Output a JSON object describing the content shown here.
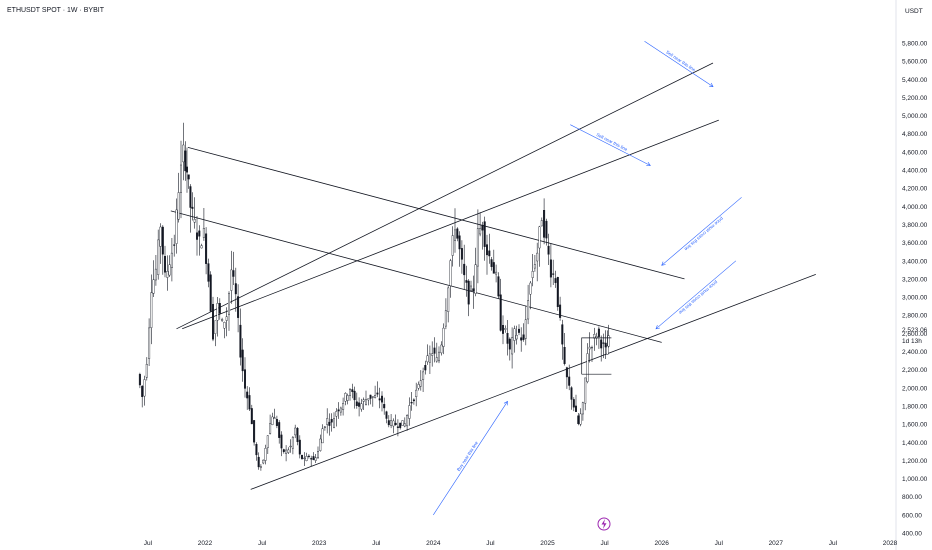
{
  "header": {
    "symbol_title": "ETHUSDT SPOT · 1W · BYBIT"
  },
  "chart_data": {
    "type": "candlestick",
    "title": "ETHUSDT SPOT · 1W · BYBIT",
    "currency_label": "USDT",
    "ylim": [
      400,
      6000
    ],
    "y_ticks": [
      "400.00",
      "600.00",
      "800.00",
      "1,000.00",
      "1,200.00",
      "1,400.00",
      "1,600.00",
      "1,800.00",
      "2,000.00",
      "2,200.00",
      "2,400.00",
      "2,600.00",
      "2,800.00",
      "3,000.00",
      "3,200.00",
      "3,400.00",
      "3,600.00",
      "3,800.00",
      "4,000.00",
      "4,200.00",
      "4,400.00",
      "4,600.00",
      "4,800.00",
      "5,000.00",
      "5,200.00",
      "5,400.00",
      "5,600.00",
      "5,800.00"
    ],
    "x_ticks": [
      "Jul",
      "2022",
      "Jul",
      "2023",
      "Jul",
      "2024",
      "Jul",
      "2025",
      "Jul",
      "2026",
      "Jul",
      "2027",
      "Jul",
      "2028"
    ],
    "last_price": "2,523.06",
    "countdown": "1d 13h",
    "price_path": [
      [
        2021.42,
        2150
      ],
      [
        2021.46,
        1900
      ],
      [
        2021.5,
        2300
      ],
      [
        2021.54,
        3100
      ],
      [
        2021.58,
        3300
      ],
      [
        2021.62,
        3800
      ],
      [
        2021.66,
        3200
      ],
      [
        2021.7,
        3400
      ],
      [
        2021.74,
        3600
      ],
      [
        2021.78,
        4200
      ],
      [
        2021.82,
        4600
      ],
      [
        2021.85,
        4400
      ],
      [
        2021.88,
        4000
      ],
      [
        2021.92,
        3800
      ],
      [
        2021.96,
        3600
      ],
      [
        2022.0,
        3700
      ],
      [
        2022.04,
        3200
      ],
      [
        2022.08,
        2600
      ],
      [
        2022.12,
        2900
      ],
      [
        2022.16,
        2700
      ],
      [
        2022.2,
        2800
      ],
      [
        2022.24,
        3300
      ],
      [
        2022.28,
        3000
      ],
      [
        2022.32,
        2400
      ],
      [
        2022.36,
        2000
      ],
      [
        2022.4,
        1800
      ],
      [
        2022.44,
        1400
      ],
      [
        2022.48,
        1100
      ],
      [
        2022.52,
        1200
      ],
      [
        2022.56,
        1500
      ],
      [
        2022.6,
        1700
      ],
      [
        2022.64,
        1600
      ],
      [
        2022.68,
        1300
      ],
      [
        2022.72,
        1300
      ],
      [
        2022.76,
        1350
      ],
      [
        2022.8,
        1550
      ],
      [
        2022.84,
        1250
      ],
      [
        2022.88,
        1200
      ],
      [
        2022.92,
        1250
      ],
      [
        2022.96,
        1200
      ],
      [
        2023.0,
        1300
      ],
      [
        2023.04,
        1550
      ],
      [
        2023.08,
        1650
      ],
      [
        2023.12,
        1600
      ],
      [
        2023.16,
        1750
      ],
      [
        2023.2,
        1800
      ],
      [
        2023.24,
        1900
      ],
      [
        2023.28,
        2000
      ],
      [
        2023.32,
        1850
      ],
      [
        2023.36,
        1800
      ],
      [
        2023.4,
        1850
      ],
      [
        2023.44,
        1900
      ],
      [
        2023.48,
        1900
      ],
      [
        2023.52,
        1900
      ],
      [
        2023.56,
        1850
      ],
      [
        2023.6,
        1650
      ],
      [
        2023.64,
        1600
      ],
      [
        2023.68,
        1600
      ],
      [
        2023.72,
        1600
      ],
      [
        2023.76,
        1600
      ],
      [
        2023.8,
        1800
      ],
      [
        2023.84,
        1900
      ],
      [
        2023.88,
        2000
      ],
      [
        2023.92,
        2200
      ],
      [
        2023.96,
        2300
      ],
      [
        2024.0,
        2400
      ],
      [
        2024.04,
        2300
      ],
      [
        2024.08,
        2500
      ],
      [
        2024.12,
        2900
      ],
      [
        2024.16,
        3400
      ],
      [
        2024.2,
        3800
      ],
      [
        2024.24,
        3500
      ],
      [
        2024.28,
        3200
      ],
      [
        2024.32,
        3000
      ],
      [
        2024.36,
        3100
      ],
      [
        2024.4,
        3700
      ],
      [
        2024.44,
        3800
      ],
      [
        2024.48,
        3500
      ],
      [
        2024.52,
        3400
      ],
      [
        2024.56,
        3200
      ],
      [
        2024.6,
        2700
      ],
      [
        2024.64,
        2600
      ],
      [
        2024.68,
        2400
      ],
      [
        2024.72,
        2600
      ],
      [
        2024.76,
        2600
      ],
      [
        2024.8,
        2500
      ],
      [
        2024.84,
        3000
      ],
      [
        2024.88,
        3300
      ],
      [
        2024.92,
        3500
      ],
      [
        2024.96,
        3900
      ],
      [
        2025.0,
        3600
      ],
      [
        2025.04,
        3300
      ],
      [
        2025.08,
        3200
      ],
      [
        2025.12,
        2700
      ],
      [
        2025.16,
        2200
      ],
      [
        2025.2,
        2000
      ],
      [
        2025.24,
        1800
      ],
      [
        2025.28,
        1600
      ],
      [
        2025.32,
        1800
      ],
      [
        2025.36,
        2400
      ],
      [
        2025.4,
        2500
      ],
      [
        2025.44,
        2600
      ],
      [
        2025.48,
        2500
      ],
      [
        2025.52,
        2400
      ],
      [
        2025.54,
        2523
      ]
    ],
    "lines": [
      {
        "name": "upper-descending",
        "points": [
          [
            2021.85,
            4650
          ],
          [
            2026.2,
            3200
          ]
        ]
      },
      {
        "name": "lower-descending",
        "points": [
          [
            2021.7,
            3950
          ],
          [
            2026.0,
            2500
          ]
        ]
      },
      {
        "name": "rising-support",
        "points": [
          [
            2022.4,
            880
          ],
          [
            2027.35,
            3250
          ]
        ]
      },
      {
        "name": "upper-channel",
        "points": [
          [
            2021.75,
            2650
          ],
          [
            2026.45,
            5580
          ]
        ]
      },
      {
        "name": "lower-channel",
        "points": [
          [
            2021.8,
            2650
          ],
          [
            2026.5,
            4950
          ]
        ]
      }
    ],
    "annotations": [
      {
        "text": "Sell near this line",
        "from": [
          2025.85,
          5820
        ],
        "to": [
          2026.45,
          5320
        ]
      },
      {
        "text": "Sell near this line",
        "from": [
          2025.2,
          4900
        ],
        "to": [
          2025.9,
          4450
        ]
      },
      {
        "text": "price must cross this line",
        "from": [
          2026.7,
          4100
        ],
        "to": [
          2026.0,
          3350
        ]
      },
      {
        "text": "price must cross this line",
        "from": [
          2026.65,
          3400
        ],
        "to": [
          2025.95,
          2650
        ]
      },
      {
        "text": "Buy near this line",
        "from": [
          2024.0,
          600
        ],
        "to": [
          2024.65,
          1850
        ]
      }
    ]
  }
}
